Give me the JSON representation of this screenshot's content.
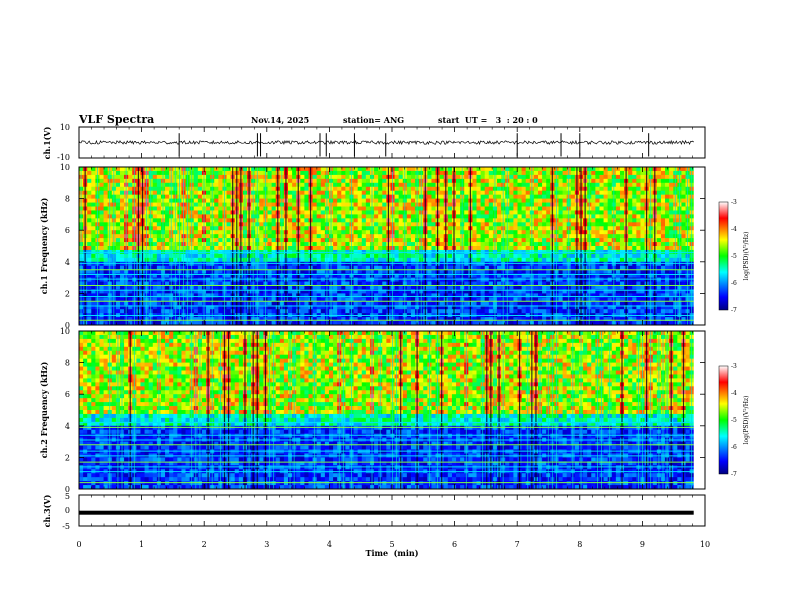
{
  "header": {
    "title": "VLF Spectra",
    "date": "Nov.14, 2025",
    "station": "station= ANG",
    "start": "start  UT =   3  : 20 : 0"
  },
  "chart_data": [
    {
      "type": "line",
      "panel": "ch1-waveform",
      "ylabel": "ch.1(V)",
      "ylim": [
        -10,
        10
      ],
      "yticks": [
        "10",
        "-10"
      ],
      "baseline": 0,
      "spikes_min": [
        1.6,
        2.85,
        2.9,
        3.85,
        3.95,
        4.4,
        4.9,
        7.0,
        7.7,
        8.0,
        9.1
      ]
    },
    {
      "type": "heatmap",
      "panel": "ch1-spectrogram",
      "ylabel": "ch.1\nFrequency  (kHz)",
      "ylim": [
        0,
        10
      ],
      "yticks": [
        "10",
        "8",
        "6",
        "4",
        "2",
        "0"
      ],
      "colorbar": {
        "label": "log(PSD)(V²/Hz)",
        "ticks": [
          "-3",
          "-4",
          "-5",
          "-6",
          "-7"
        ],
        "range": [
          -7,
          -3
        ]
      },
      "narrowband_lines_khz": [
        0.3,
        0.6,
        1.2,
        1.5,
        1.8,
        2.2,
        2.5,
        2.9,
        3.2,
        3.5,
        3.9,
        4.6
      ]
    },
    {
      "type": "heatmap",
      "panel": "ch2-spectrogram",
      "ylabel": "ch.2\nFrequency  (kHz)",
      "ylim": [
        0,
        10
      ],
      "yticks": [
        "10",
        "8",
        "6",
        "4",
        "2",
        "0"
      ],
      "colorbar": {
        "label": "log(PSD)(V²/Hz)",
        "ticks": [
          "-3",
          "-4",
          "-5",
          "-6",
          "-7"
        ],
        "range": [
          -7,
          -3
        ]
      },
      "narrowband_lines_khz": [
        0.4,
        1.1,
        1.4,
        1.7,
        2.1,
        2.4,
        2.8,
        3.1,
        3.4,
        3.9,
        4.2
      ]
    },
    {
      "type": "line",
      "panel": "ch3-waveform",
      "ylabel": "ch.3(V)",
      "ylim": [
        -5,
        5
      ],
      "yticks": [
        "5",
        "0",
        "-5"
      ],
      "baseline": -0.7
    }
  ],
  "xaxis": {
    "label": "Time  (min)",
    "range": [
      0,
      10
    ],
    "ticks": [
      "0",
      "1",
      "2",
      "3",
      "4",
      "5",
      "6",
      "7",
      "8",
      "9",
      "10"
    ],
    "data_end": 9.82
  }
}
